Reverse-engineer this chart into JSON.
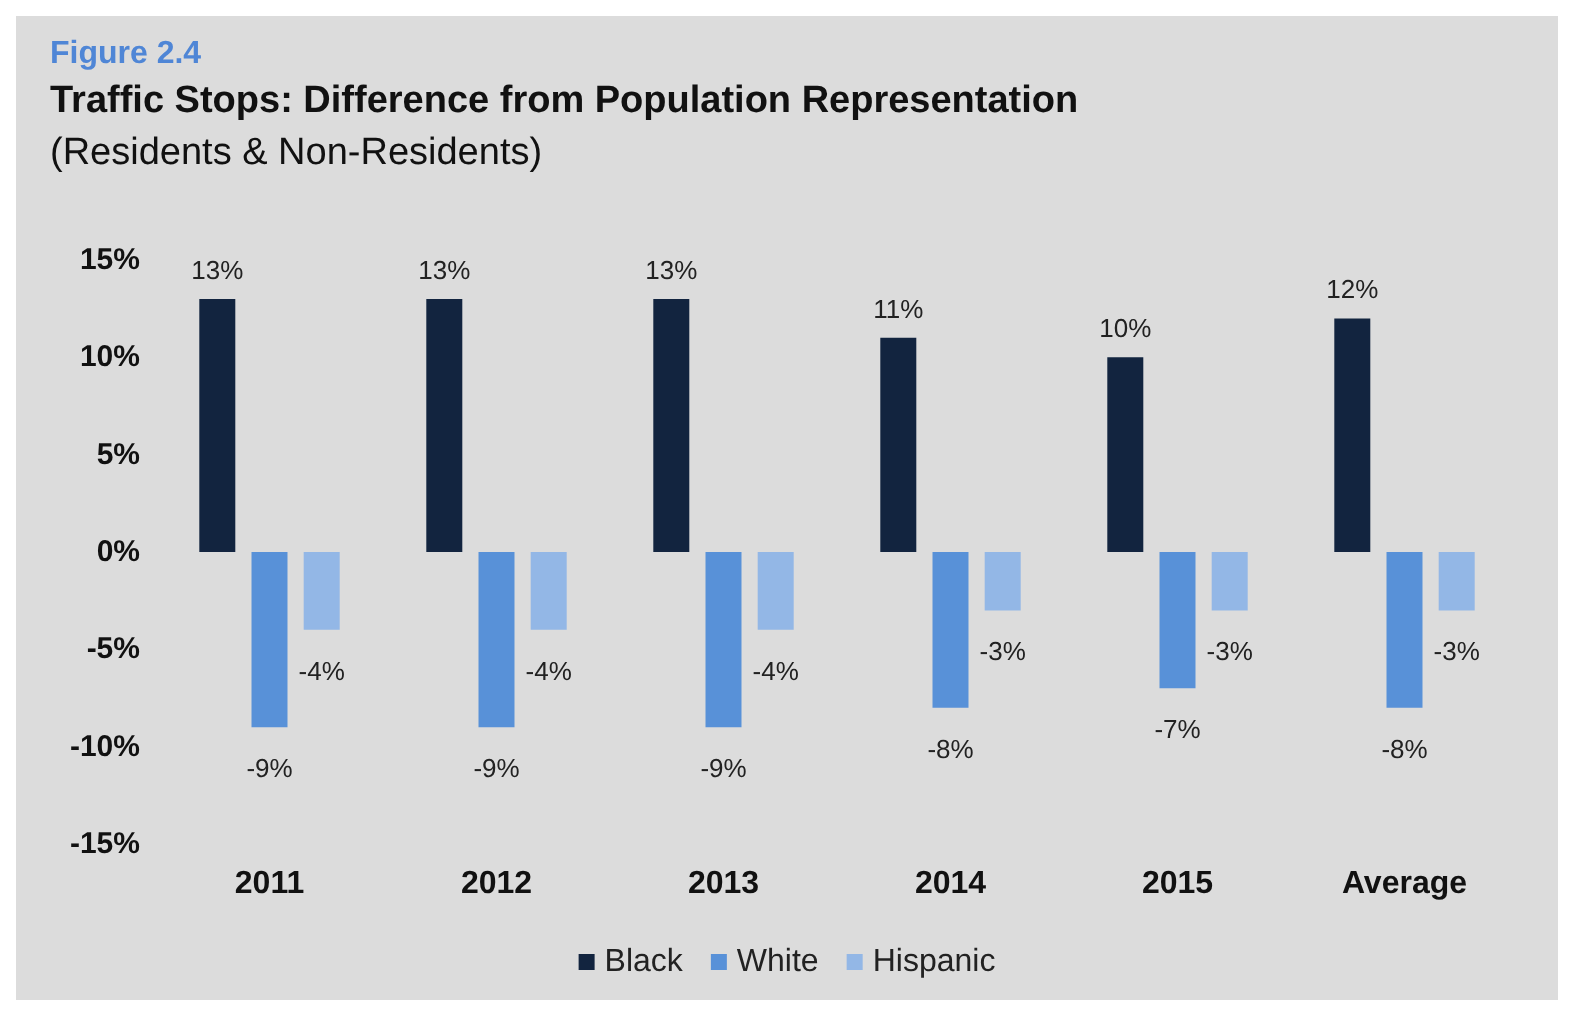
{
  "chart_data": {
    "type": "bar",
    "title": "Traffic Stops: Difference from Population Representation",
    "subtitle": "(Residents & Non-Residents)",
    "annotations": [
      "Figure 2.4"
    ],
    "categories": [
      "2011",
      "2012",
      "2013",
      "2014",
      "2015",
      "Average"
    ],
    "series": [
      {
        "name": "Black",
        "color": "#12243f",
        "values": [
          13,
          13,
          13,
          11,
          10,
          12
        ],
        "value_labels": [
          "13%",
          "13%",
          "13%",
          "11%",
          "10%",
          "12%"
        ]
      },
      {
        "name": "White",
        "color": "#5891d8",
        "values": [
          -9,
          -9,
          -9,
          -8,
          -7,
          -8
        ],
        "value_labels": [
          "-9%",
          "-9%",
          "-9%",
          "-8%",
          "-7%",
          "-8%"
        ]
      },
      {
        "name": "Hispanic",
        "color": "#93b7e6",
        "values": [
          -4,
          -4,
          -4,
          -3,
          -3,
          -3
        ],
        "value_labels": [
          "-4%",
          "-4%",
          "-4%",
          "-3%",
          "-3%",
          "-3%"
        ]
      }
    ],
    "ylim": [
      -15,
      15
    ],
    "yticks": [
      {
        "value": -15,
        "label": "-15%"
      },
      {
        "value": -10,
        "label": "-10%"
      },
      {
        "value": -5,
        "label": "-5%"
      },
      {
        "value": 0,
        "label": "0%"
      },
      {
        "value": 5,
        "label": "5%"
      },
      {
        "value": 10,
        "label": "10%"
      },
      {
        "value": 15,
        "label": "15%"
      }
    ],
    "grid": false,
    "legend": "bottom"
  }
}
